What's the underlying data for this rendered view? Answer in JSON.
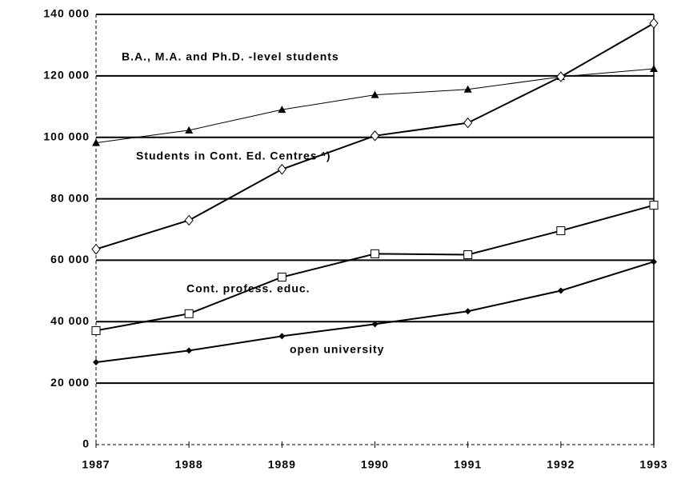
{
  "chart_data": {
    "type": "line",
    "categories": [
      "1987",
      "1988",
      "1989",
      "1990",
      "1991",
      "1992",
      "1993"
    ],
    "series": [
      {
        "name": "B.A., M.A. and Ph.D. -level students",
        "color": "#000000",
        "marker": "triangle",
        "values": [
          98200,
          102300,
          109000,
          113800,
          115600,
          119700,
          122300
        ]
      },
      {
        "name": "Students in Cont. Ed. Centres *)",
        "color": "#000000",
        "marker": "diamond-open",
        "values": [
          63600,
          73000,
          89600,
          100500,
          104700,
          119700,
          137100
        ]
      },
      {
        "name": "Cont. profess. educ.",
        "color": "#000000",
        "marker": "square-open",
        "values": [
          37100,
          42600,
          54500,
          62100,
          61800,
          69600,
          77900
        ]
      },
      {
        "name": "open university",
        "color": "#000000",
        "marker": "diamond",
        "values": [
          26800,
          30600,
          35300,
          39200,
          43400,
          50100,
          59500
        ]
      }
    ],
    "ylim": [
      0,
      140000
    ],
    "yticks": [
      0,
      {
        "value": 20000,
        "label": "20 000"
      },
      {
        "value": 40000,
        "label": "40 000"
      },
      {
        "value": 60000,
        "label": "60 000"
      },
      {
        "value": 80000,
        "label": "80 000"
      },
      {
        "value": 100000,
        "label": "100 000"
      },
      {
        "value": 120000,
        "label": "120 000"
      },
      {
        "value": 140000,
        "label": "140 000"
      }
    ],
    "grid": true
  }
}
